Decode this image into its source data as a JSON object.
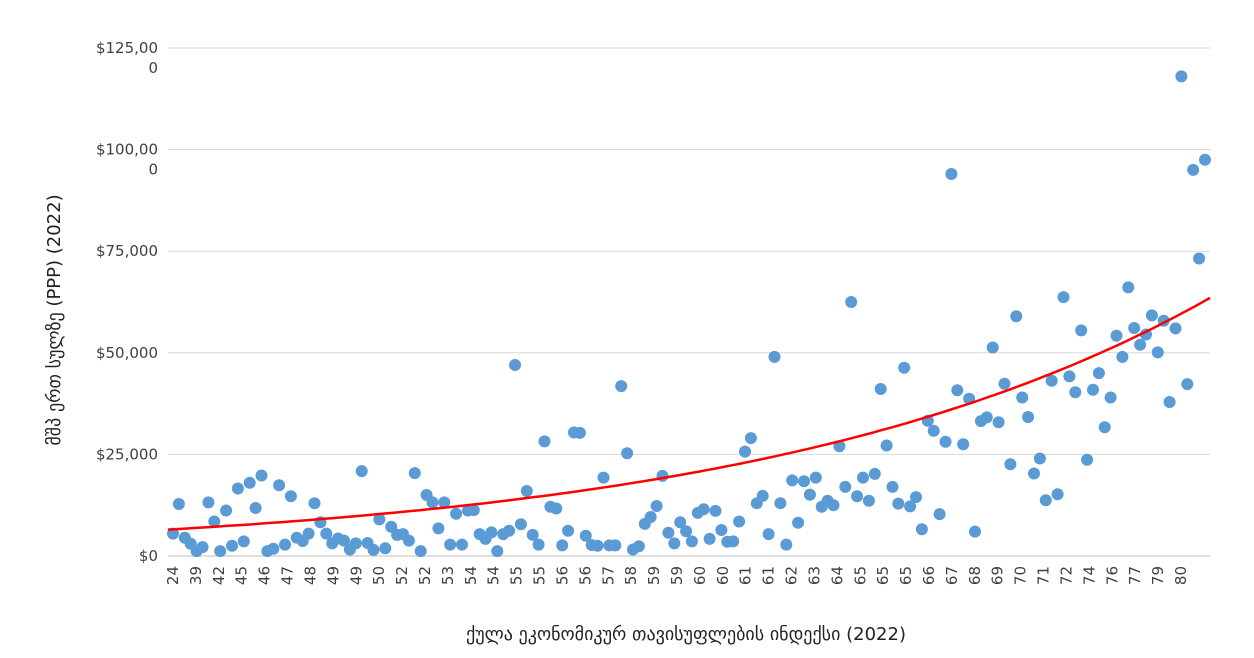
{
  "chart_data": {
    "type": "scatter",
    "title": "",
    "xlabel": "ქულა ეკონომიკურ თავისუფლების ინდექსი (2022)",
    "ylabel": "მშპ ერთ სულზე (PPP) (2022)",
    "ylim": [
      0,
      125000
    ],
    "y_ticks": [
      {
        "value": 0,
        "lines": [
          "$0"
        ]
      },
      {
        "value": 25000,
        "lines": [
          "$25,000"
        ]
      },
      {
        "value": 50000,
        "lines": [
          "$50,000"
        ]
      },
      {
        "value": 75000,
        "lines": [
          "$75,000"
        ]
      },
      {
        "value": 100000,
        "lines": [
          "$100,00",
          "0"
        ]
      },
      {
        "value": 125000,
        "lines": [
          "$125,00",
          "0"
        ]
      }
    ],
    "x_tick_labels": [
      "24",
      "39",
      "42",
      "45",
      "46",
      "47",
      "48",
      "49",
      "49",
      "50",
      "52",
      "52",
      "53",
      "54",
      "54",
      "55",
      "55",
      "56",
      "56",
      "57",
      "58",
      "59",
      "59",
      "60",
      "60",
      "61",
      "61",
      "62",
      "63",
      "64",
      "65",
      "65",
      "65",
      "66",
      "67",
      "68",
      "69",
      "70",
      "71",
      "72",
      "74",
      "76",
      "77",
      "79",
      "80"
    ],
    "grid": true,
    "point_color": "#5B9BD5",
    "trend_color": "#FF0000",
    "trendline": {
      "type": "exponential",
      "start": 6500,
      "end": 63500
    },
    "series": [
      {
        "values": [
          5500,
          12800,
          4500,
          3000,
          1200,
          2200,
          13200,
          8500,
          1200,
          11200,
          2500,
          16600,
          3600,
          18000,
          11800,
          19800,
          1200,
          1800,
          17400,
          2800,
          14700,
          4500,
          3700,
          5500,
          13000,
          8300,
          5500,
          3100,
          4300,
          3800,
          1600,
          3100,
          20900,
          3200,
          1500,
          9000,
          1900,
          7200,
          5200,
          5400,
          3800,
          20400,
          1200,
          15000,
          13200,
          6800,
          13200,
          2800,
          10400,
          2800,
          11200,
          11300,
          5400,
          4200,
          5800,
          1200,
          5400,
          6200,
          47000,
          7800,
          16000,
          5200,
          2800,
          28200,
          12100,
          11700,
          2600,
          6200,
          30400,
          30300,
          5000,
          2700,
          2500,
          19300,
          2600,
          2600,
          41800,
          25300,
          1600,
          2400,
          7900,
          9600,
          12300,
          19700,
          5700,
          3100,
          8300,
          6100,
          3600,
          10600,
          11500,
          4200,
          11100,
          6400,
          3500,
          3600,
          8500,
          25700,
          29000,
          13000,
          14800,
          5400,
          49000,
          13000,
          2800,
          18600,
          8200,
          18400,
          15100,
          19300,
          12100,
          13600,
          12500,
          27000,
          17000,
          62500,
          14700,
          19300,
          13600,
          20200,
          41100,
          27200,
          17000,
          12900,
          46300,
          12200,
          14500,
          6600,
          33300,
          30800,
          10300,
          28100,
          94000,
          40800,
          27500,
          38700,
          6000,
          33200,
          34100,
          51300,
          32900,
          42400,
          22600,
          59000,
          39000,
          34200,
          20300,
          24000,
          13700,
          43100,
          15200,
          63700,
          44200,
          40300,
          55500,
          23700,
          40900,
          45000,
          31700,
          39000,
          54200,
          49000,
          66100,
          56100,
          52000,
          54500,
          59200,
          50100,
          57900,
          37900,
          56000,
          118000,
          42300,
          95000,
          73200,
          97500
        ]
      }
    ]
  }
}
